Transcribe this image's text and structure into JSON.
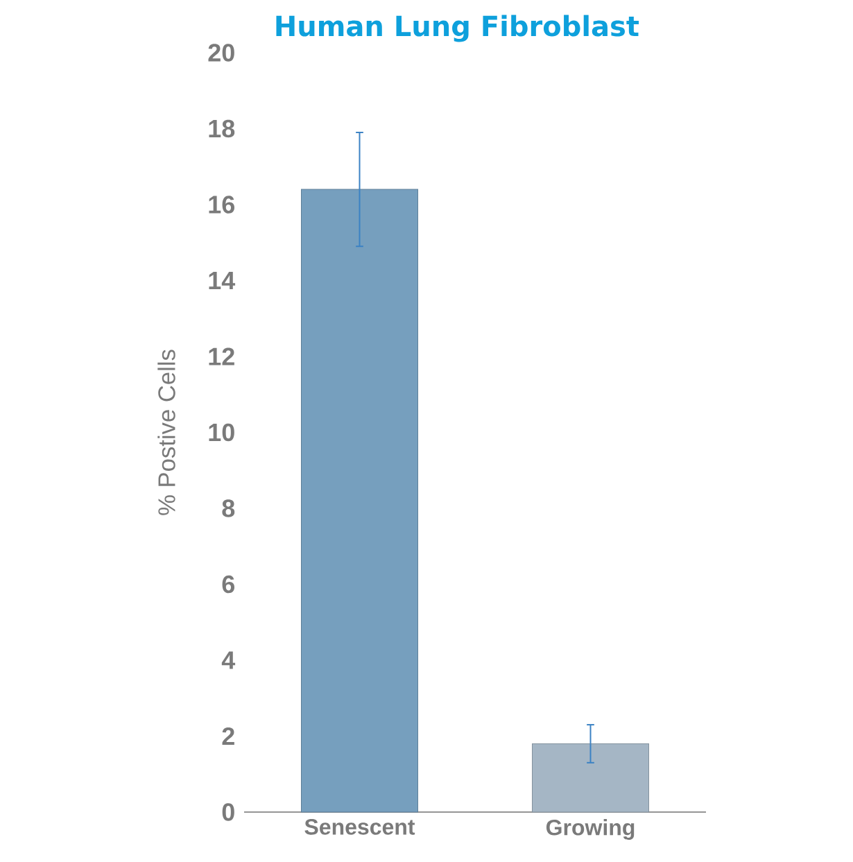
{
  "chart_data": {
    "type": "bar",
    "title": "Human Lung Fibroblast",
    "ylabel": "% Postive Cells",
    "categories": [
      "Senescent",
      "Growing"
    ],
    "values": [
      16.4,
      1.8
    ],
    "errors": [
      1.5,
      0.5
    ],
    "colors": [
      "#769fbe",
      "#a5b6c5"
    ],
    "ylim": [
      0,
      20
    ],
    "yticks": [
      0,
      2,
      4,
      6,
      8,
      10,
      12,
      14,
      16,
      18,
      20
    ],
    "grid": false
  }
}
